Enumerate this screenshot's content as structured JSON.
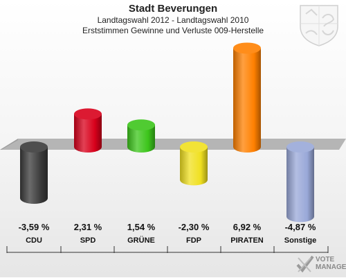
{
  "header": {
    "title": "Stadt Beverungen",
    "subtitle1": "Landtagswahl 2012 - Landtagswahl 2010",
    "subtitle2": "Erststimmen Gewinne und Verluste 009-Herstelle"
  },
  "brand": {
    "line1": "VOTE",
    "line2": "MANAGER"
  },
  "chart_data": {
    "type": "bar",
    "title": "Stadt Beverungen",
    "subtitle": "Landtagswahl 2012 - Landtagswahl 2010 / Erststimmen Gewinne und Verluste 009-Herstelle",
    "categories": [
      "CDU",
      "SPD",
      "GRÜNE",
      "FDP",
      "PIRATEN",
      "Sonstige"
    ],
    "values": [
      -3.59,
      2.31,
      1.54,
      -2.3,
      6.92,
      -4.87
    ],
    "value_labels": [
      "-3,59 %",
      "2,31 %",
      "1,54 %",
      "-2,30 %",
      "6,92 %",
      "-4,87 %"
    ],
    "colors": [
      "#3a3a3a",
      "#d8001b",
      "#3cc51b",
      "#f0e020",
      "#ff8000",
      "#99a8d8"
    ],
    "unit": "%",
    "grid": false,
    "legend": "none"
  }
}
